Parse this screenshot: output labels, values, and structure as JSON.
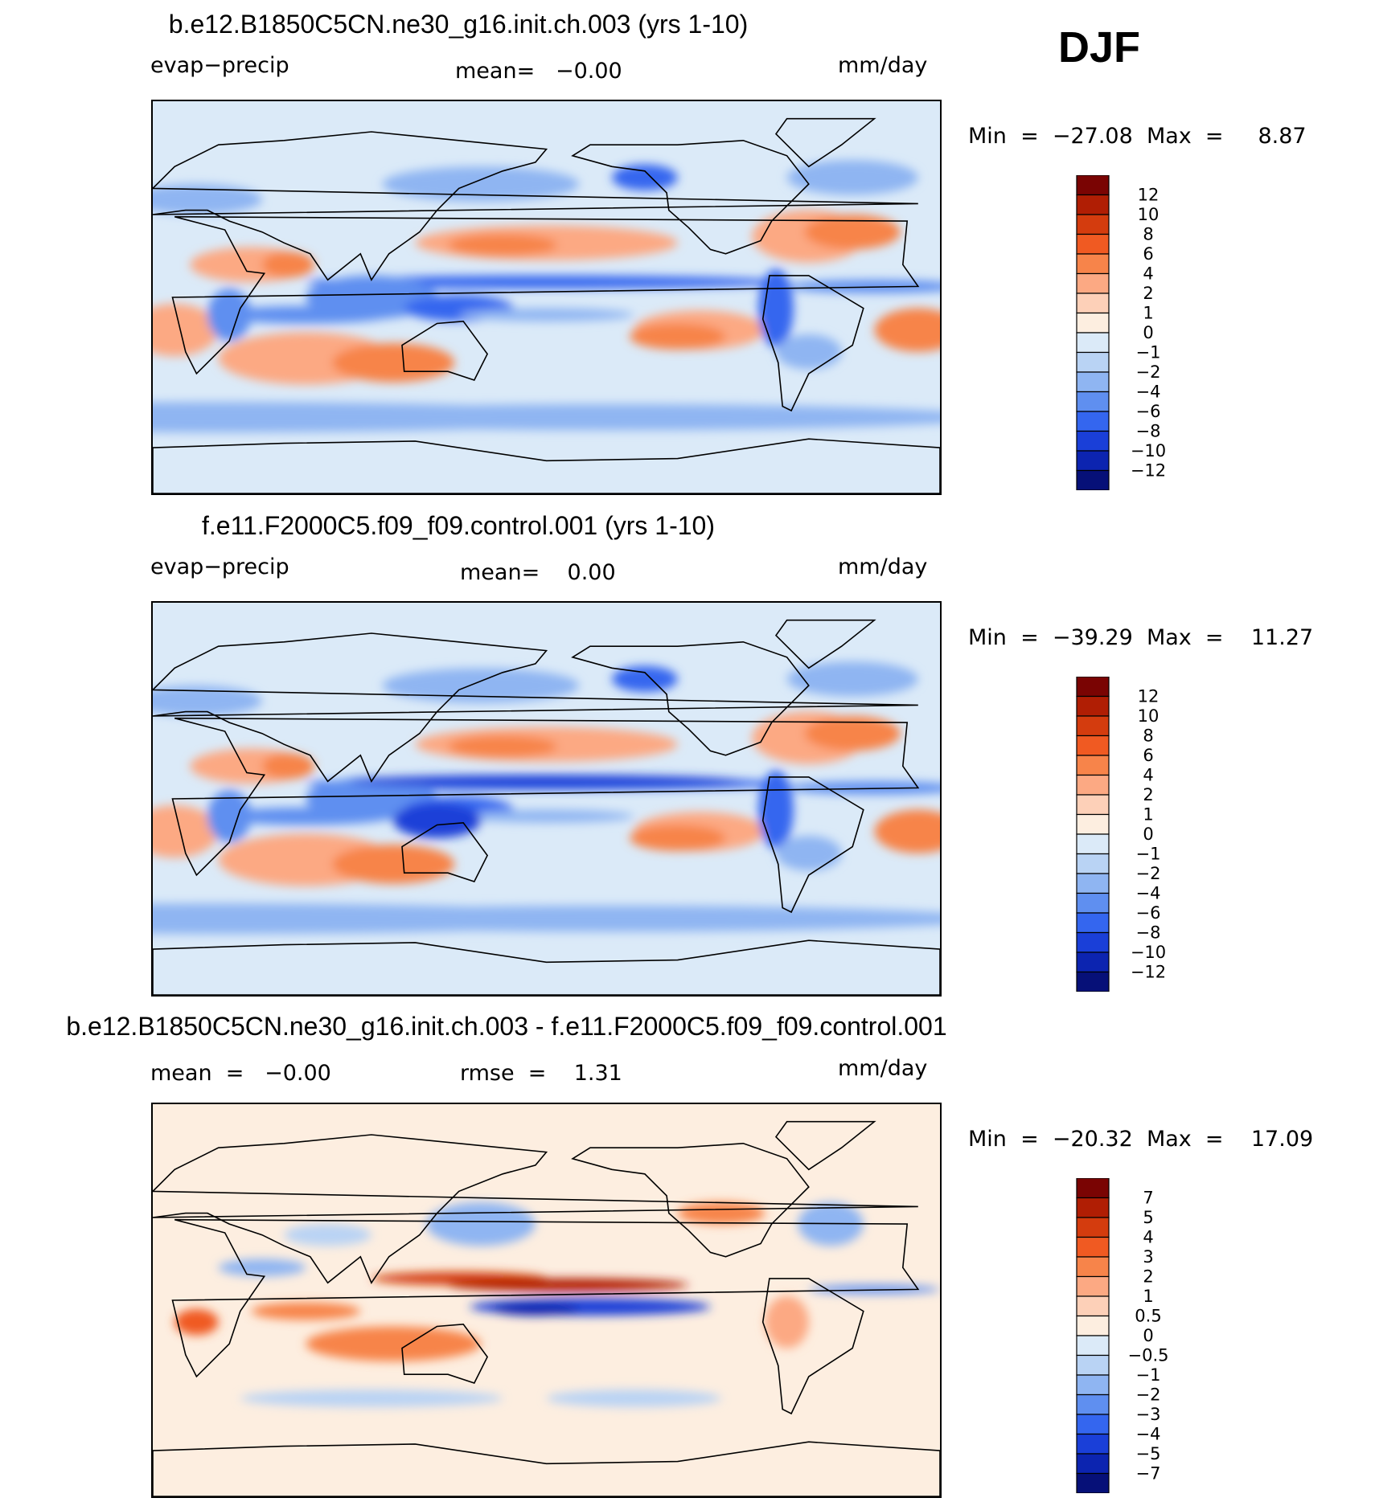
{
  "figure_label": "DJF",
  "chart_data": [
    {
      "type": "heatmap",
      "title": "b.e12.B1850C5CN.ne30_g16.init.ch.003 (yrs 1-10)",
      "left_label": "evap−precip",
      "center_label": "mean=   −0.00",
      "units": "mm/day",
      "stats": "Min  =  −27.08  Max  =     8.87",
      "min": -27.08,
      "max": 8.87,
      "mean": -0.0,
      "colorbar": {
        "levels": [
          "12",
          "10",
          "8",
          "6",
          "4",
          "2",
          "1",
          "0",
          "−1",
          "−2",
          "−4",
          "−6",
          "−8",
          "−10",
          "−12"
        ],
        "colors": [
          "#7a0403",
          "#b01e04",
          "#d43c0e",
          "#f05a22",
          "#f7844a",
          "#fca983",
          "#fdd0b8",
          "#fdeee0",
          "#dbeaf8",
          "#b9d3f4",
          "#8fb5f2",
          "#5f8ff0",
          "#3466ef",
          "#1a3fd8",
          "#0c24b0",
          "#061078"
        ]
      }
    },
    {
      "type": "heatmap",
      "title": "f.e11.F2000C5.f09_f09.control.001 (yrs 1-10)",
      "left_label": "evap−precip",
      "center_label": "mean=    0.00",
      "units": "mm/day",
      "stats": "Min  =  −39.29  Max  =    11.27",
      "min": -39.29,
      "max": 11.27,
      "mean": 0.0,
      "colorbar": {
        "levels": [
          "12",
          "10",
          "8",
          "6",
          "4",
          "2",
          "1",
          "0",
          "−1",
          "−2",
          "−4",
          "−6",
          "−8",
          "−10",
          "−12"
        ],
        "colors": [
          "#7a0403",
          "#b01e04",
          "#d43c0e",
          "#f05a22",
          "#f7844a",
          "#fca983",
          "#fdd0b8",
          "#fdeee0",
          "#dbeaf8",
          "#b9d3f4",
          "#8fb5f2",
          "#5f8ff0",
          "#3466ef",
          "#1a3fd8",
          "#0c24b0",
          "#061078"
        ]
      }
    },
    {
      "type": "heatmap",
      "title": "b.e12.B1850C5CN.ne30_g16.init.ch.003 - f.e11.F2000C5.f09_f09.control.001",
      "left_label": "mean  =   −0.00",
      "center_label": "rmse  =    1.31",
      "units": "mm/day",
      "stats": "Min  =  −20.32  Max  =    17.09",
      "min": -20.32,
      "max": 17.09,
      "mean": -0.0,
      "rmse": 1.31,
      "colorbar": {
        "levels": [
          "7",
          "5",
          "4",
          "3",
          "2",
          "1",
          "0.5",
          "0",
          "−0.5",
          "−1",
          "−2",
          "−3",
          "−4",
          "−5",
          "−7"
        ],
        "colors": [
          "#7a0403",
          "#b01e04",
          "#d43c0e",
          "#f05a22",
          "#f7844a",
          "#fca983",
          "#fdd0b8",
          "#fdeee0",
          "#dbeaf8",
          "#b9d3f4",
          "#8fb5f2",
          "#5f8ff0",
          "#3466ef",
          "#1a3fd8",
          "#0c24b0",
          "#061078"
        ]
      }
    }
  ]
}
